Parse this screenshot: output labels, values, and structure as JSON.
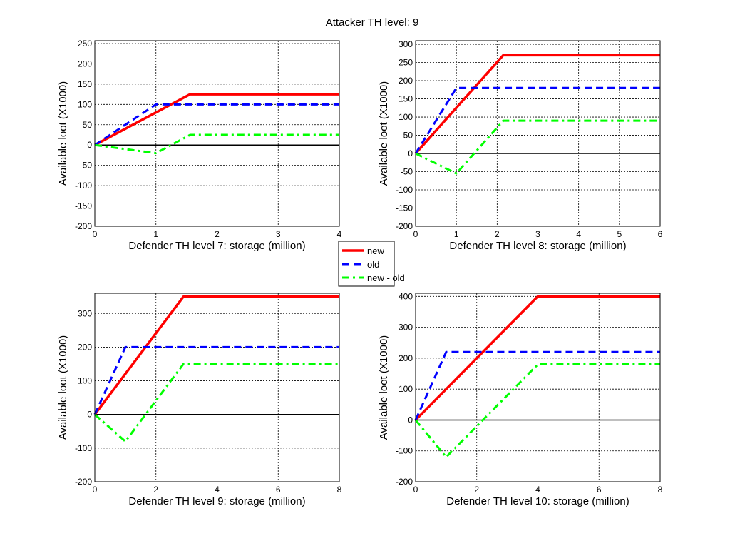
{
  "chart_data": {
    "type": "line",
    "title": "Attacker TH level: 9",
    "legend": {
      "placement": "center",
      "entries": [
        {
          "name": "new",
          "color": "#ff0000",
          "style": "solid"
        },
        {
          "name": "old",
          "color": "#0000ff",
          "style": "dashed"
        },
        {
          "name": "new - old",
          "color": "#00ff00",
          "style": "dashdot"
        }
      ]
    },
    "grid": true,
    "subplots": [
      {
        "xlabel": "Defender TH level 7: storage (million)",
        "ylabel": "Available loot (X1000)",
        "xlim": [
          0,
          4
        ],
        "ylim": [
          -200,
          257
        ],
        "xticks": [
          0,
          1,
          2,
          3,
          4
        ],
        "yticks": [
          -200,
          -150,
          -100,
          -50,
          0,
          50,
          100,
          150,
          200,
          250
        ],
        "series": [
          {
            "name": "new",
            "x": [
              0,
              1.56,
              4
            ],
            "y": [
              0,
              125,
              125
            ]
          },
          {
            "name": "old",
            "x": [
              0,
              1,
              4
            ],
            "y": [
              0,
              100,
              100
            ]
          },
          {
            "name": "new - old",
            "x": [
              0,
              1,
              1.56,
              4
            ],
            "y": [
              0,
              -20,
              25,
              25
            ]
          }
        ]
      },
      {
        "xlabel": "Defender TH level 8: storage (million)",
        "ylabel": "Available loot (X1000)",
        "xlim": [
          0,
          6
        ],
        "ylim": [
          -200,
          310
        ],
        "xticks": [
          0,
          1,
          2,
          3,
          4,
          5,
          6
        ],
        "yticks": [
          -200,
          -150,
          -100,
          -50,
          0,
          50,
          100,
          150,
          200,
          250,
          300
        ],
        "series": [
          {
            "name": "new",
            "x": [
              0,
              2.15,
              6
            ],
            "y": [
              0,
              270,
              270
            ]
          },
          {
            "name": "old",
            "x": [
              0,
              1,
              6
            ],
            "y": [
              0,
              180,
              180
            ]
          },
          {
            "name": "new - old",
            "x": [
              0,
              1,
              2.15,
              6
            ],
            "y": [
              0,
              -55,
              90,
              90
            ]
          }
        ]
      },
      {
        "xlabel": "Defender TH level 9: storage (million)",
        "ylabel": "Available loot (X1000)",
        "xlim": [
          0,
          8
        ],
        "ylim": [
          -200,
          360
        ],
        "xticks": [
          0,
          2,
          4,
          6,
          8
        ],
        "yticks": [
          -200,
          -100,
          0,
          100,
          200,
          300
        ],
        "series": [
          {
            "name": "new",
            "x": [
              0,
              2.9,
              8
            ],
            "y": [
              0,
              350,
              350
            ]
          },
          {
            "name": "old",
            "x": [
              0,
              1,
              8
            ],
            "y": [
              0,
              200,
              200
            ]
          },
          {
            "name": "new - old",
            "x": [
              0,
              1,
              2.9,
              8
            ],
            "y": [
              0,
              -80,
              150,
              150
            ]
          }
        ]
      },
      {
        "xlabel": "Defender TH level 10: storage (million)",
        "ylabel": "Available loot (X1000)",
        "xlim": [
          0,
          8
        ],
        "ylim": [
          -200,
          410
        ],
        "xticks": [
          0,
          2,
          4,
          6,
          8
        ],
        "yticks": [
          -200,
          -100,
          0,
          100,
          200,
          300,
          400
        ],
        "series": [
          {
            "name": "new",
            "x": [
              0,
              4,
              8
            ],
            "y": [
              0,
              400,
              400
            ]
          },
          {
            "name": "old",
            "x": [
              0,
              1,
              8
            ],
            "y": [
              0,
              220,
              220
            ]
          },
          {
            "name": "new - old",
            "x": [
              0,
              1,
              4,
              8
            ],
            "y": [
              0,
              -120,
              180,
              180
            ]
          }
        ]
      }
    ]
  }
}
